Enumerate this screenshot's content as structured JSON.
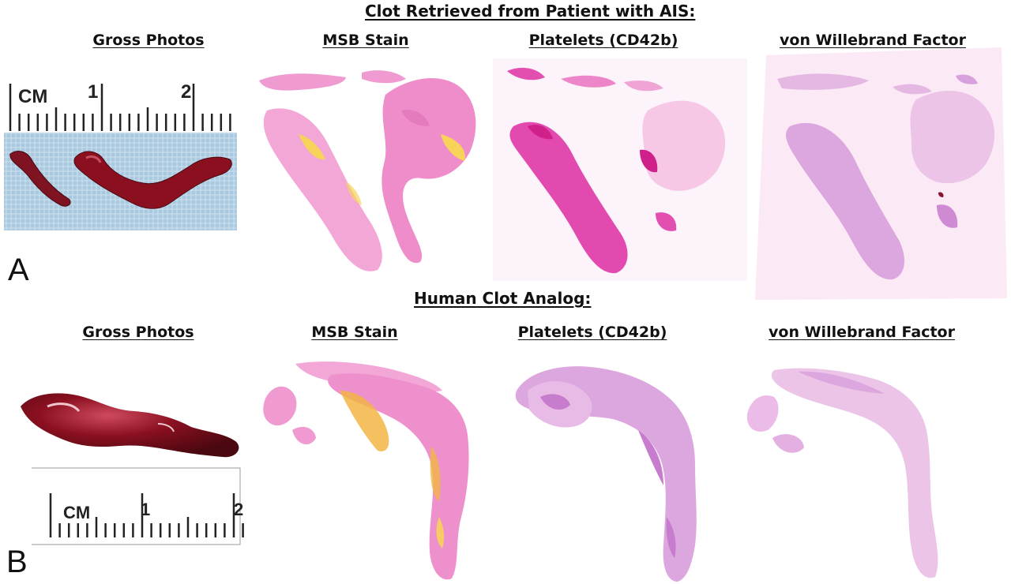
{
  "section_a": {
    "title": "Clot Retrieved from Patient with AIS:",
    "letter": "A",
    "columns": [
      "Gross Photos",
      "MSB Stain",
      "Platelets (CD42b)",
      "von Willebrand Factor"
    ],
    "ruler": {
      "unit": "CM",
      "marks": [
        "1",
        "2"
      ]
    }
  },
  "section_b": {
    "title": "Human Clot Analog:",
    "letter": "B",
    "columns": [
      "Gross Photos",
      "MSB Stain",
      "Platelets (CD42b)",
      "von Willebrand Factor"
    ],
    "ruler": {
      "unit": "CM",
      "marks": [
        "1",
        "2"
      ]
    }
  },
  "colors": {
    "msb_pink": "#ef9ad0",
    "msb_yellow": "#f7d35a",
    "cd42b_magenta": "#e63fb0",
    "vwf_lilac": "#d8a0dc",
    "clot_red": "#8a1020",
    "cloth_blue": "#a9c9e0"
  }
}
